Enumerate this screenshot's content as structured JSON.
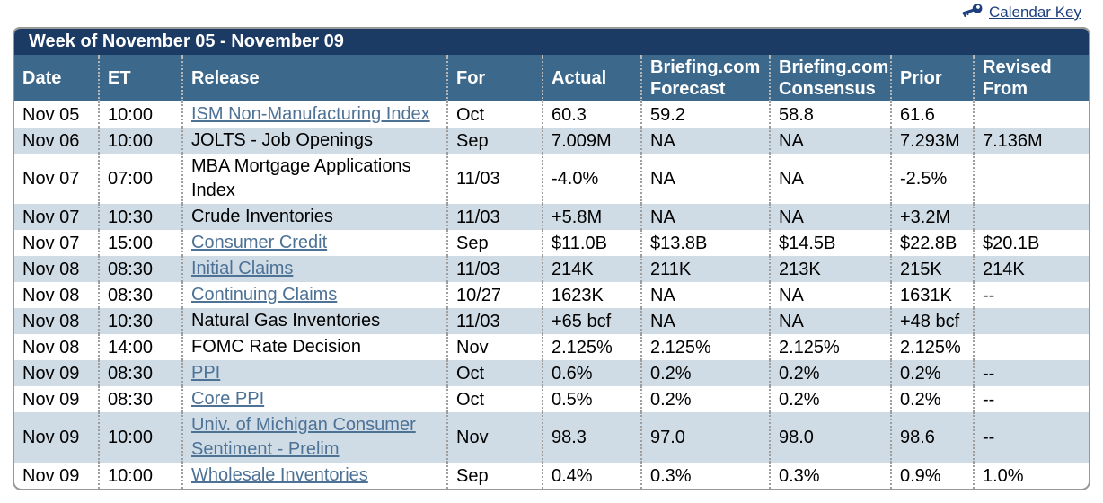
{
  "calendar_key": {
    "label": "Calendar Key"
  },
  "colors": {
    "title_bar_bg": "#1b3a64",
    "header_bg": "#3c688c",
    "row_alt_bg": "#cfdce6",
    "release_link": "#4d7296",
    "calendar_key_link": "#1d3f7d"
  },
  "table": {
    "title": "Week of November 05 - November 09",
    "columns": [
      "Date",
      "ET",
      "Release",
      "For",
      "Actual",
      "Briefing.com Forecast",
      "Briefing.com Consensus",
      "Prior",
      "Revised From"
    ],
    "rows": [
      {
        "date": "Nov 05",
        "et": "10:00",
        "release": "ISM Non-Manufacturing Index",
        "link": true,
        "for": "Oct",
        "actual": "60.3",
        "forecast": "59.2",
        "consensus": "58.8",
        "prior": "61.6",
        "revised": ""
      },
      {
        "date": "Nov 06",
        "et": "10:00",
        "release": "JOLTS - Job Openings",
        "link": false,
        "for": "Sep",
        "actual": "7.009M",
        "forecast": "NA",
        "consensus": "NA",
        "prior": "7.293M",
        "revised": "7.136M"
      },
      {
        "date": "Nov 07",
        "et": "07:00",
        "release": "MBA Mortgage Applications Index",
        "link": false,
        "for": "11/03",
        "actual": "-4.0%",
        "forecast": "NA",
        "consensus": "NA",
        "prior": "-2.5%",
        "revised": ""
      },
      {
        "date": "Nov 07",
        "et": "10:30",
        "release": "Crude Inventories",
        "link": false,
        "for": "11/03",
        "actual": "+5.8M",
        "forecast": "NA",
        "consensus": "NA",
        "prior": "+3.2M",
        "revised": ""
      },
      {
        "date": "Nov 07",
        "et": "15:00",
        "release": "Consumer Credit",
        "link": true,
        "for": "Sep",
        "actual": "$11.0B",
        "forecast": "$13.8B",
        "consensus": "$14.5B",
        "prior": "$22.8B",
        "revised": "$20.1B"
      },
      {
        "date": "Nov 08",
        "et": "08:30",
        "release": "Initial Claims",
        "link": true,
        "for": "11/03",
        "actual": "214K",
        "forecast": "211K",
        "consensus": "213K",
        "prior": "215K",
        "revised": "214K"
      },
      {
        "date": "Nov 08",
        "et": "08:30",
        "release": "Continuing Claims",
        "link": true,
        "for": "10/27",
        "actual": "1623K",
        "forecast": "NA",
        "consensus": "NA",
        "prior": "1631K",
        "revised": "--"
      },
      {
        "date": "Nov 08",
        "et": "10:30",
        "release": "Natural Gas Inventories",
        "link": false,
        "for": "11/03",
        "actual": "+65 bcf",
        "forecast": "NA",
        "consensus": "NA",
        "prior": "+48 bcf",
        "revised": ""
      },
      {
        "date": "Nov 08",
        "et": "14:00",
        "release": "FOMC Rate Decision",
        "link": false,
        "for": "Nov",
        "actual": "2.125%",
        "forecast": "2.125%",
        "consensus": "2.125%",
        "prior": "2.125%",
        "revised": ""
      },
      {
        "date": "Nov 09",
        "et": "08:30",
        "release": "PPI",
        "link": true,
        "for": "Oct",
        "actual": "0.6%",
        "forecast": "0.2%",
        "consensus": "0.2%",
        "prior": "0.2%",
        "revised": "--"
      },
      {
        "date": "Nov 09",
        "et": "08:30",
        "release": "Core PPI",
        "link": true,
        "for": "Oct",
        "actual": "0.5%",
        "forecast": "0.2%",
        "consensus": "0.2%",
        "prior": "0.2%",
        "revised": "--"
      },
      {
        "date": "Nov 09",
        "et": "10:00",
        "release": "Univ. of Michigan Consumer Sentiment - Prelim",
        "link": true,
        "for": "Nov",
        "actual": "98.3",
        "forecast": "97.0",
        "consensus": "98.0",
        "prior": "98.6",
        "revised": "--"
      },
      {
        "date": "Nov 09",
        "et": "10:00",
        "release": "Wholesale Inventories",
        "link": true,
        "for": "Sep",
        "actual": "0.4%",
        "forecast": "0.3%",
        "consensus": "0.3%",
        "prior": "0.9%",
        "revised": "1.0%"
      }
    ]
  }
}
